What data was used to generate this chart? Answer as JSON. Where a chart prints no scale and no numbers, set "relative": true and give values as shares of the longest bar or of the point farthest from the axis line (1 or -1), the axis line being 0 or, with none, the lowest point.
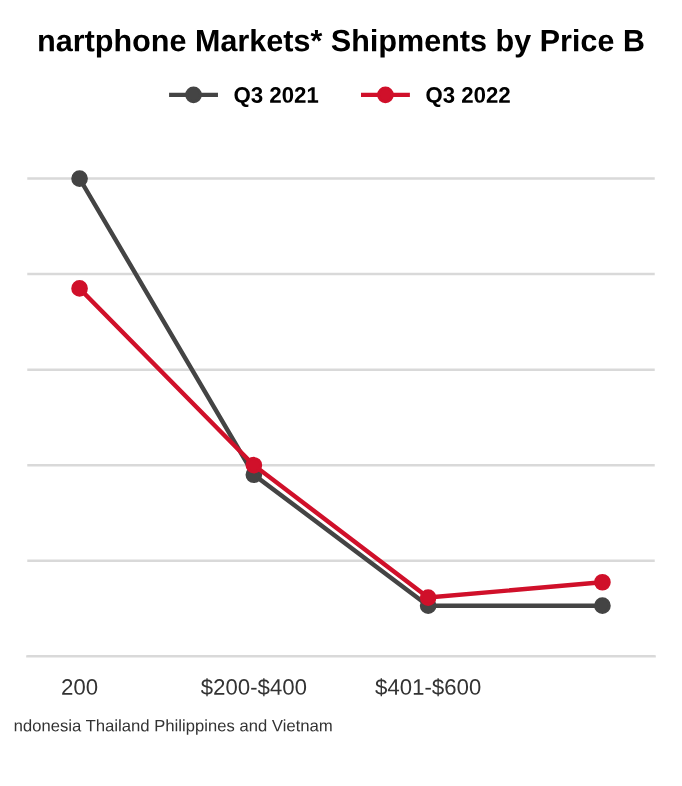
{
  "chart_data": {
    "type": "line",
    "title": "nartphone Markets* Shipments by Price B",
    "categories": [
      "200",
      "$200-$400",
      "$401-$600",
      null
    ],
    "series": [
      {
        "name": "Q3 2021",
        "color": "#444444",
        "values": [
          1,
          0.38,
          0.106,
          0.106
        ]
      },
      {
        "name": "Q3 2022",
        "color": "#d0102a",
        "values": [
          0.77,
          0.4,
          0.123,
          0.155
        ]
      }
    ],
    "relative": true,
    "marker": "circle",
    "line_style": "solid",
    "grid": "y",
    "legend": "top",
    "annotations": [
      "ndonesia Thailand Philippines and Vietnam"
    ]
  }
}
